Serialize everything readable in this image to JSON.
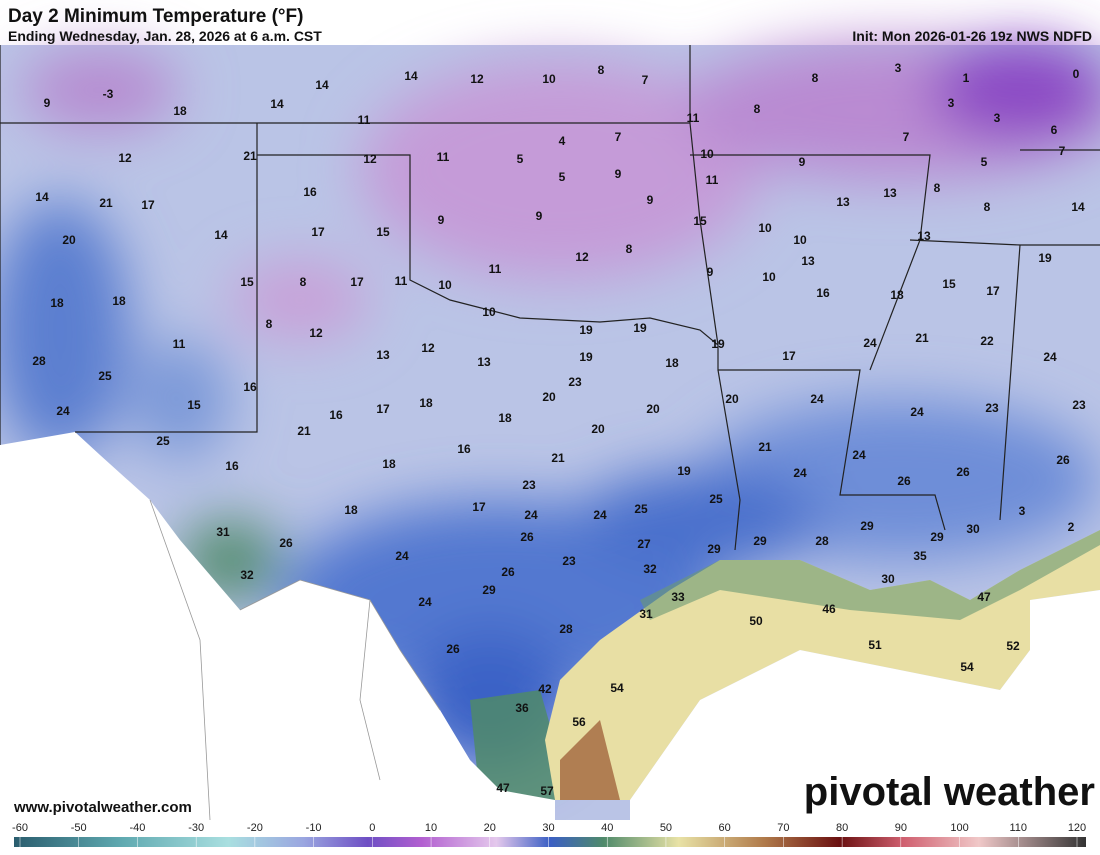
{
  "header": {
    "title": "Day 2 Minimum Temperature (°F)",
    "subtitle": "Ending Wednesday, Jan. 28, 2026 at 6 a.m. CST",
    "init": "Init: Mon 2026-01-26 19z NWS NDFD"
  },
  "footer": {
    "website": "www.pivotalweather.com",
    "logo": "pivotal weather"
  },
  "colorbar": {
    "ticks": [
      -60,
      -50,
      -40,
      -30,
      -20,
      -10,
      0,
      10,
      20,
      30,
      40,
      50,
      60,
      70,
      80,
      90,
      100,
      110,
      120
    ]
  },
  "temperature_labels": [
    9,
    -3,
    18,
    14,
    14,
    14,
    12,
    10,
    8,
    7,
    8,
    3,
    1,
    0,
    11,
    11,
    8,
    3,
    3,
    6,
    7,
    12,
    21,
    12,
    11,
    4,
    7,
    5,
    10,
    9,
    7,
    5,
    14,
    21,
    17,
    16,
    5,
    9,
    11,
    13,
    8,
    9,
    13,
    8,
    14,
    20,
    14,
    17,
    15,
    9,
    9,
    15,
    10,
    10,
    13,
    8,
    12,
    19,
    18,
    18,
    15,
    8,
    17,
    11,
    10,
    11,
    9,
    10,
    13,
    16,
    15,
    17,
    18,
    8,
    12,
    10,
    19,
    19,
    19,
    11,
    28,
    25,
    13,
    12,
    13,
    19,
    18,
    17,
    24,
    21,
    22,
    24,
    16,
    23,
    15,
    24,
    16,
    17,
    18,
    18,
    20,
    20,
    20,
    24,
    24,
    23,
    23,
    25,
    21,
    20,
    16,
    21,
    24,
    16,
    18,
    21,
    19,
    24,
    26,
    26,
    23,
    26,
    17,
    18,
    25,
    24,
    24,
    25,
    31,
    26,
    26,
    27,
    29,
    3,
    2,
    29,
    30,
    29,
    28,
    29,
    24,
    23,
    35,
    32,
    26,
    32,
    30,
    29,
    24,
    33,
    47,
    46,
    31,
    50,
    28,
    51,
    52,
    26,
    54,
    54,
    42,
    36,
    56,
    47,
    57
  ]
}
